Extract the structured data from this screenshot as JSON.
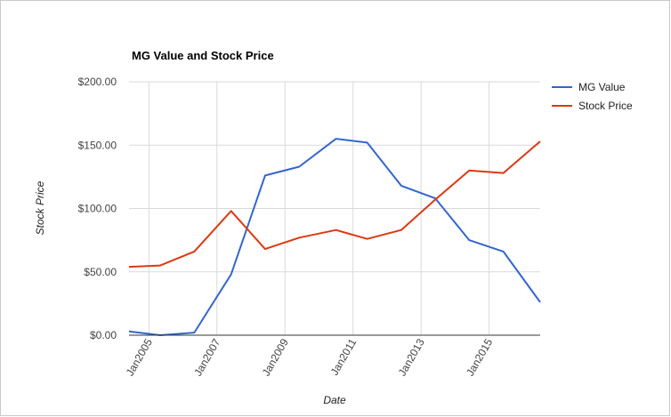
{
  "chart_data": {
    "type": "line",
    "title": "MG Value and Stock Price",
    "xlabel": "Date",
    "ylabel": "Stock Price",
    "x_ticks": [
      "Jan2005",
      "Jan2007",
      "Jan2009",
      "Jan2011",
      "Jan2013",
      "Jan2015"
    ],
    "y_ticks": [
      "$0.00",
      "$50.00",
      "$100.00",
      "$150.00",
      "$200.00"
    ],
    "ylim": [
      0,
      200
    ],
    "xlim": [
      "2004-06",
      "2016-07"
    ],
    "grid": true,
    "legend_position": "right",
    "x": [
      "2004-06",
      "2005-05",
      "2006-05",
      "2007-06",
      "2008-06",
      "2009-06",
      "2010-07",
      "2011-06",
      "2012-06",
      "2013-06",
      "2014-06",
      "2015-06",
      "2016-07"
    ],
    "series": [
      {
        "name": "MG Value",
        "color": "#3366cc",
        "values": [
          3,
          0,
          2,
          48,
          126,
          133,
          155,
          152,
          118,
          108,
          75,
          66,
          26
        ]
      },
      {
        "name": "Stock Price",
        "color": "#dc3912",
        "values": [
          54,
          55,
          66,
          98,
          68,
          77,
          83,
          76,
          83,
          107,
          130,
          128,
          153
        ]
      }
    ]
  }
}
